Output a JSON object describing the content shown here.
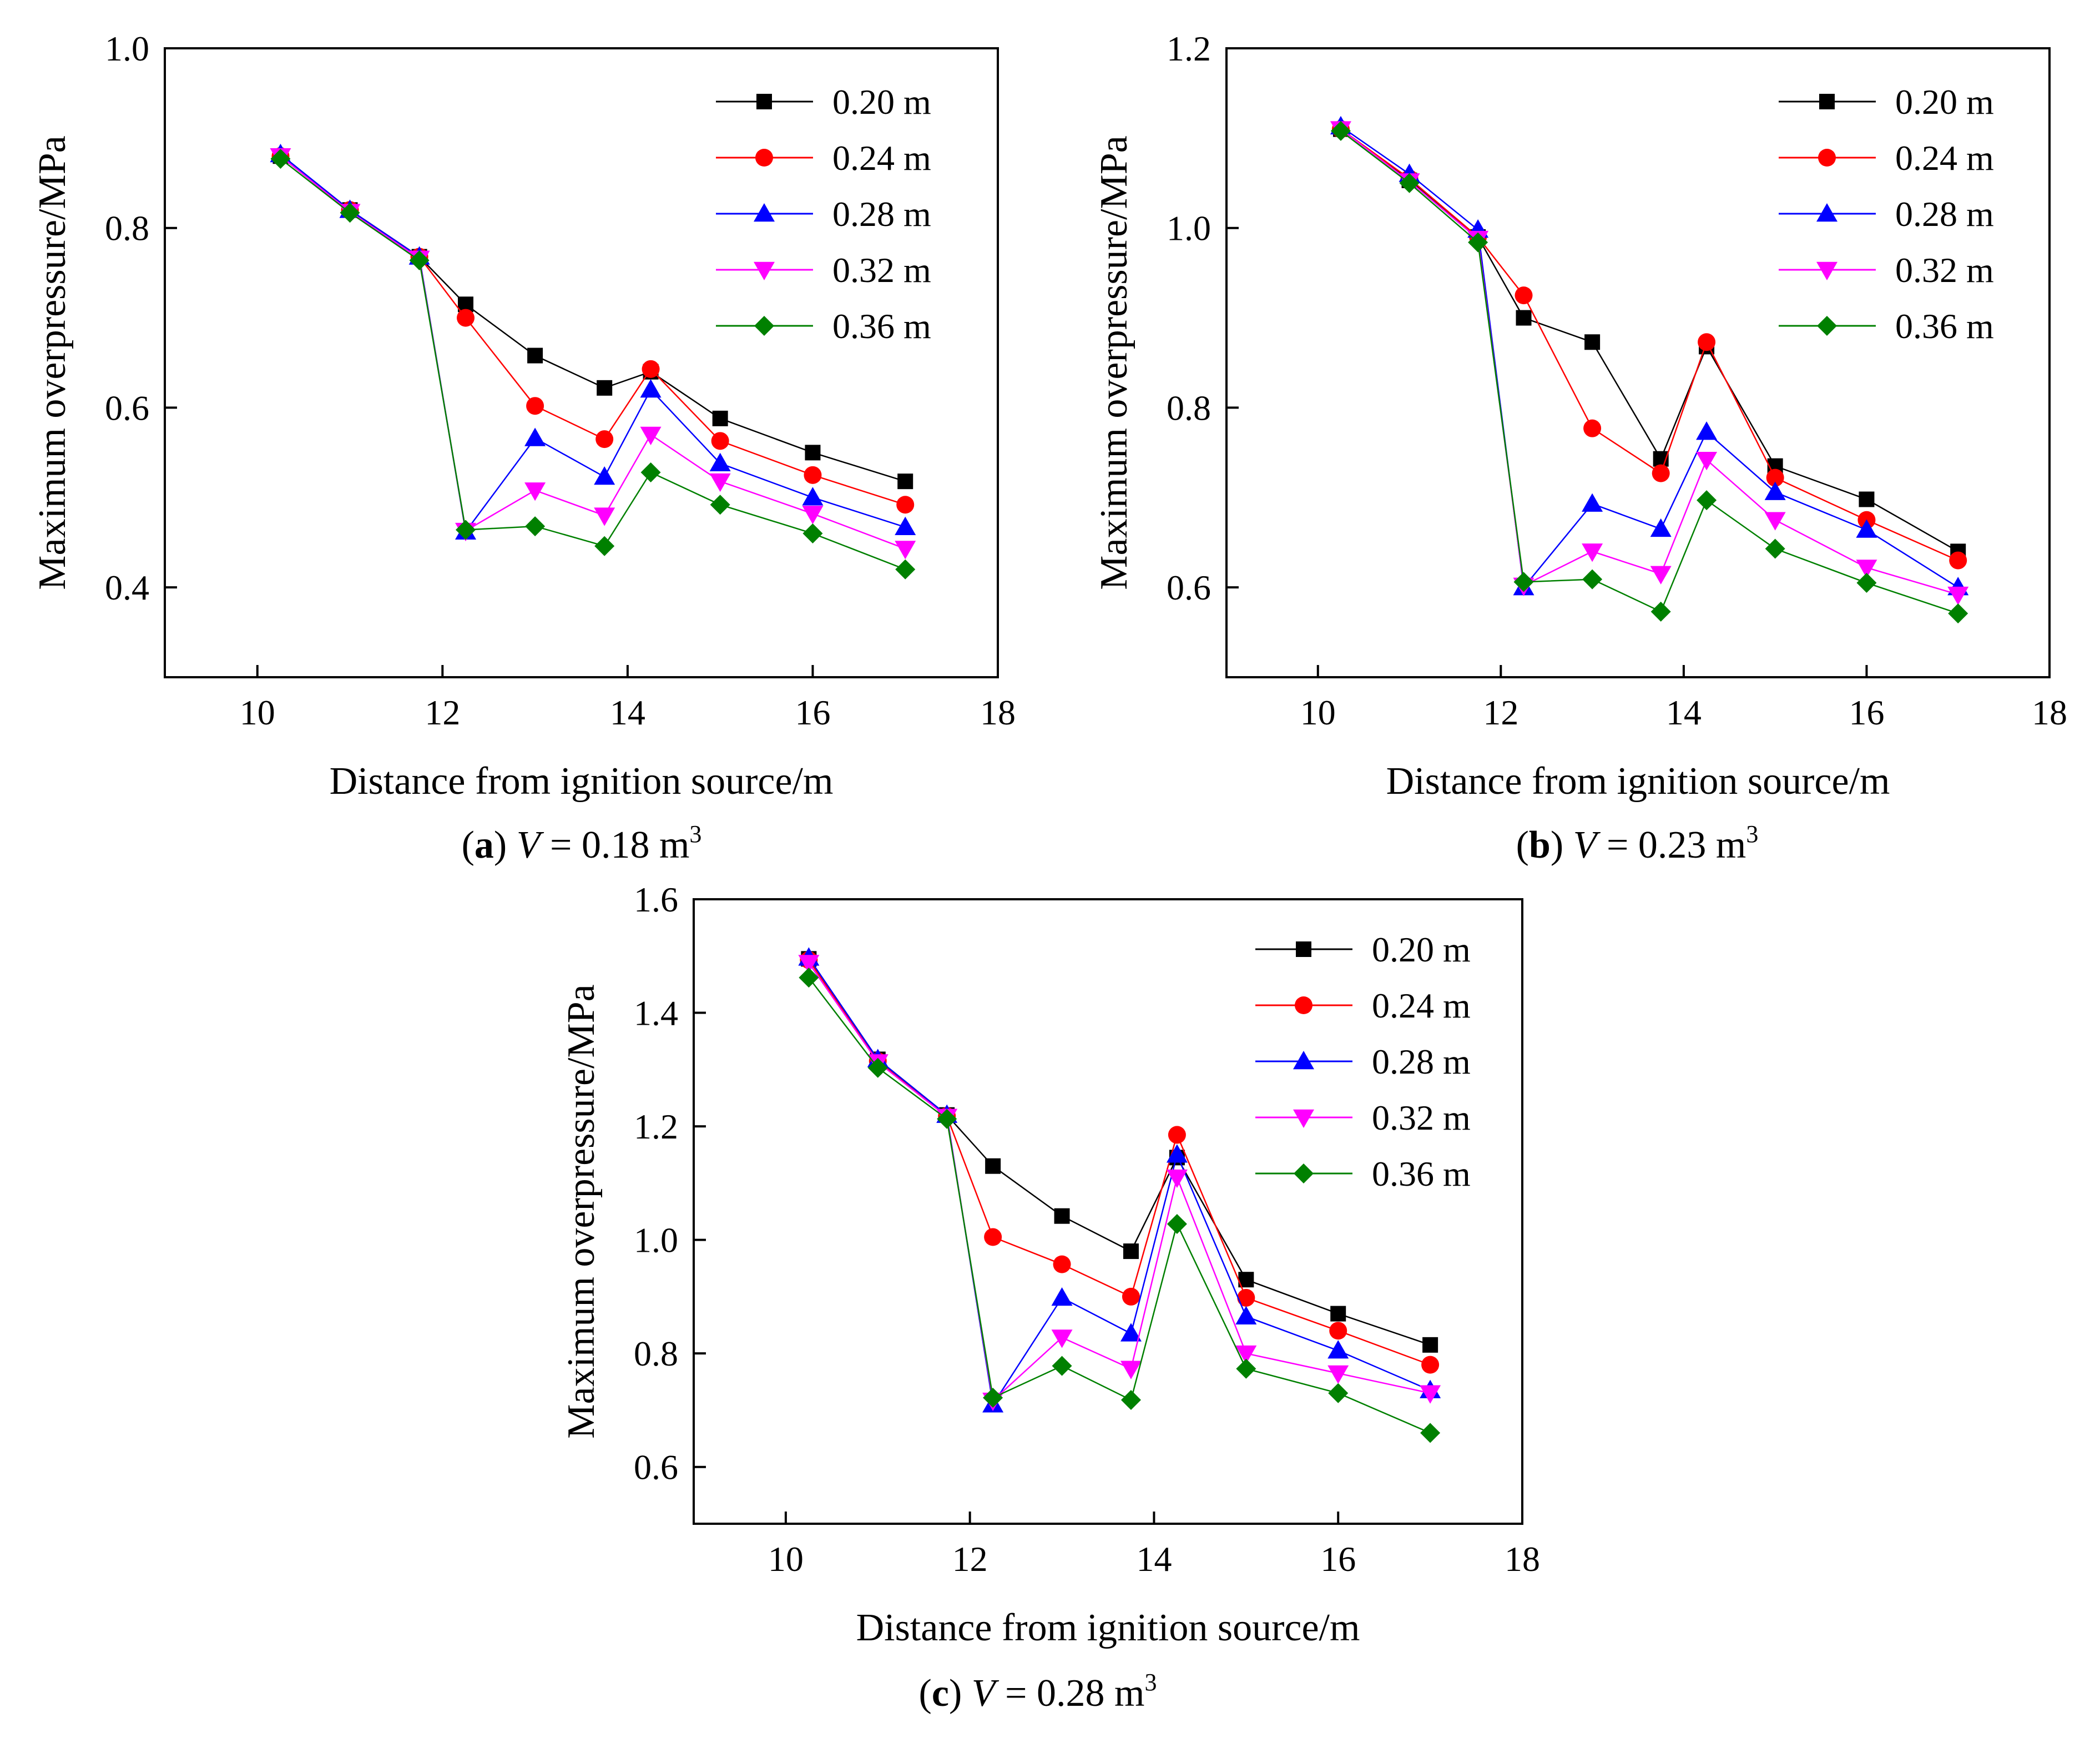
{
  "chart_data": [
    {
      "type": "line",
      "panel": "a",
      "caption_letter": "a",
      "caption_var": "V",
      "caption_rest": " = 0.18 m",
      "caption_sup": "3",
      "xlabel": "Distance from ignition source/m",
      "ylabel": "Maximum overpressure/MPa",
      "xlim": [
        9,
        18
      ],
      "ylim": [
        0.3,
        1.0
      ],
      "xticks": [
        10,
        12,
        14,
        16,
        18
      ],
      "xtick_labels": [
        "10",
        "12",
        "14",
        "16",
        "18"
      ],
      "yticks": [
        0.4,
        0.6,
        0.8,
        1.0
      ],
      "ytick_labels": [
        "0.4",
        "0.6",
        "0.8",
        "1.0"
      ],
      "x": [
        10.25,
        11.0,
        11.75,
        12.25,
        13.0,
        13.75,
        14.25,
        15.0,
        16.0,
        17.0
      ],
      "legend_position": "top-right",
      "series": [
        {
          "name": "0.20 m",
          "values": [
            0.88,
            0.82,
            0.768,
            0.715,
            0.658,
            0.622,
            0.64,
            0.588,
            0.55,
            0.518
          ]
        },
        {
          "name": "0.24 m",
          "values": [
            0.88,
            0.82,
            0.768,
            0.7,
            0.602,
            0.565,
            0.643,
            0.563,
            0.525,
            0.492
          ]
        },
        {
          "name": "0.28 m",
          "values": [
            0.882,
            0.82,
            0.768,
            0.462,
            0.566,
            0.523,
            0.62,
            0.538,
            0.5,
            0.467
          ]
        },
        {
          "name": "0.32 m",
          "values": [
            0.88,
            0.818,
            0.766,
            0.463,
            0.508,
            0.48,
            0.57,
            0.518,
            0.482,
            0.443
          ]
        },
        {
          "name": "0.36 m",
          "values": [
            0.877,
            0.817,
            0.764,
            0.464,
            0.468,
            0.446,
            0.528,
            0.492,
            0.46,
            0.42
          ]
        }
      ]
    },
    {
      "type": "line",
      "panel": "b",
      "caption_letter": "b",
      "caption_var": "V",
      "caption_rest": " = 0.23 m",
      "caption_sup": "3",
      "xlabel": "Distance from ignition source/m",
      "ylabel": "Maximum overpressure/MPa",
      "xlim": [
        9,
        18
      ],
      "ylim": [
        0.5,
        1.2
      ],
      "xticks": [
        10,
        12,
        14,
        16,
        18
      ],
      "xtick_labels": [
        "10",
        "12",
        "14",
        "16",
        "18"
      ],
      "yticks": [
        0.6,
        0.8,
        1.0,
        1.2
      ],
      "ytick_labels": [
        "0.6",
        "0.8",
        "1.0",
        "1.2"
      ],
      "x": [
        10.25,
        11.0,
        11.75,
        12.25,
        13.0,
        13.75,
        14.25,
        15.0,
        16.0,
        17.0
      ],
      "legend_position": "top-right",
      "series": [
        {
          "name": "0.20 m",
          "values": [
            1.11,
            1.053,
            0.99,
            0.9,
            0.873,
            0.743,
            0.868,
            0.735,
            0.698,
            0.64
          ]
        },
        {
          "name": "0.24 m",
          "values": [
            1.11,
            1.055,
            0.99,
            0.925,
            0.777,
            0.727,
            0.873,
            0.722,
            0.675,
            0.63
          ]
        },
        {
          "name": "0.28 m",
          "values": [
            1.113,
            1.06,
            0.998,
            0.6,
            0.693,
            0.665,
            0.773,
            0.706,
            0.664,
            0.6
          ]
        },
        {
          "name": "0.32 m",
          "values": [
            1.11,
            1.052,
            0.988,
            0.602,
            0.64,
            0.615,
            0.742,
            0.675,
            0.622,
            0.592
          ]
        },
        {
          "name": "0.36 m",
          "values": [
            1.108,
            1.05,
            0.984,
            0.606,
            0.609,
            0.573,
            0.697,
            0.643,
            0.605,
            0.571
          ]
        }
      ]
    },
    {
      "type": "line",
      "panel": "c",
      "caption_letter": "c",
      "caption_var": "V",
      "caption_rest": " = 0.28 m",
      "caption_sup": "3",
      "xlabel": "Distance from ignition source/m",
      "ylabel": "Maximum overpressure/MPa",
      "xlim": [
        9,
        18
      ],
      "ylim": [
        0.5,
        1.6
      ],
      "xticks": [
        10,
        12,
        14,
        16,
        18
      ],
      "xtick_labels": [
        "10",
        "12",
        "14",
        "16",
        "18"
      ],
      "yticks": [
        0.6,
        0.8,
        1.0,
        1.2,
        1.4,
        1.6
      ],
      "ytick_labels": [
        "0.6",
        "0.8",
        "1.0",
        "1.2",
        "1.4",
        "1.6"
      ],
      "x": [
        10.25,
        11.0,
        11.75,
        12.25,
        13.0,
        13.75,
        14.25,
        15.0,
        16.0,
        17.0
      ],
      "legend_position": "top-right",
      "series": [
        {
          "name": "0.20 m",
          "values": [
            1.495,
            1.318,
            1.22,
            1.13,
            1.042,
            0.98,
            1.145,
            0.93,
            0.87,
            0.815
          ]
        },
        {
          "name": "0.24 m",
          "values": [
            1.493,
            1.315,
            1.218,
            1.005,
            0.957,
            0.9,
            1.185,
            0.898,
            0.84,
            0.78
          ]
        },
        {
          "name": "0.28 m",
          "values": [
            1.497,
            1.318,
            1.22,
            0.71,
            0.898,
            0.835,
            1.15,
            0.865,
            0.805,
            0.735
          ]
        },
        {
          "name": "0.32 m",
          "values": [
            1.488,
            1.313,
            1.217,
            0.717,
            0.828,
            0.773,
            1.11,
            0.8,
            0.765,
            0.73
          ]
        },
        {
          "name": "0.36 m",
          "values": [
            1.462,
            1.303,
            1.213,
            0.722,
            0.778,
            0.718,
            1.028,
            0.773,
            0.73,
            0.66
          ]
        }
      ]
    }
  ],
  "colors": {
    "0.20 m": "#000000",
    "0.24 m": "#ff0000",
    "0.28 m": "#0000ff",
    "0.32 m": "#ff00ff",
    "0.36 m": "#008000"
  },
  "markers": {
    "0.20 m": "square",
    "0.24 m": "circle",
    "0.28 m": "triangle-up",
    "0.32 m": "triangle-down",
    "0.36 m": "diamond"
  }
}
